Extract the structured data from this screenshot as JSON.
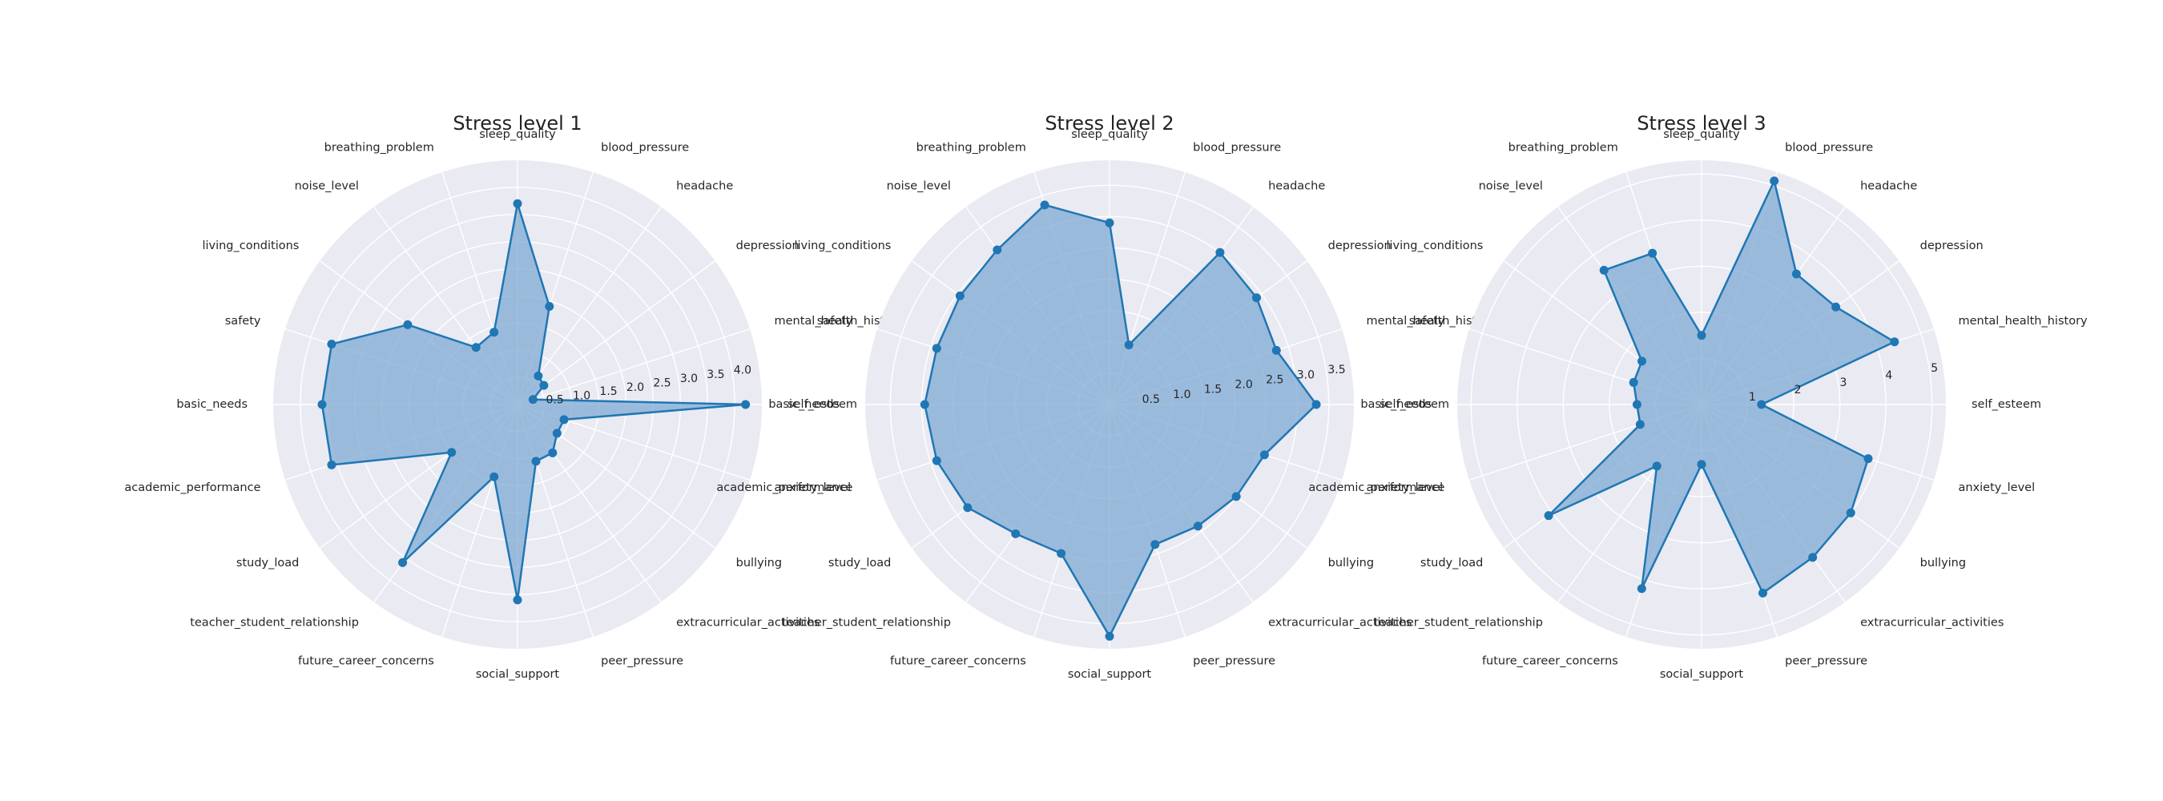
{
  "chart_data": [
    {
      "type": "radar",
      "title": "Stress level 1",
      "categories": [
        "self_esteem",
        "mental_health_history",
        "depression",
        "headache",
        "blood_pressure",
        "sleep_quality",
        "breathing_problem",
        "noise_level",
        "living_conditions",
        "safety",
        "basic_needs",
        "academic_performance",
        "study_load",
        "teacher_student_relationship",
        "future_career_concerns",
        "social_support",
        "peer_pressure",
        "extracurricular_activities",
        "bullying",
        "anxiety_level"
      ],
      "values": [
        4.2,
        0.3,
        0.6,
        0.65,
        1.9,
        3.7,
        1.4,
        1.3,
        2.5,
        3.6,
        3.6,
        3.6,
        1.5,
        3.6,
        1.4,
        3.6,
        1.1,
        1.1,
        0.9,
        0.9
      ],
      "ylim": [
        0,
        4.5
      ],
      "ticks": [
        0.5,
        1.0,
        1.5,
        2.0,
        2.5,
        3.0,
        3.5,
        4.0
      ],
      "tick_labels": [
        "0.5",
        "1.0",
        "1.5",
        "2.0",
        "2.5",
        "3.0",
        "3.5",
        "4.0"
      ],
      "grid": true
    },
    {
      "type": "radar",
      "title": "Stress level 2",
      "categories": [
        "self_esteem",
        "mental_health_history",
        "depression",
        "headache",
        "blood_pressure",
        "sleep_quality",
        "breathing_problem",
        "noise_level",
        "living_conditions",
        "safety",
        "basic_needs",
        "academic_performance",
        "study_load",
        "teacher_student_relationship",
        "future_career_concerns",
        "social_support",
        "peer_pressure",
        "extracurricular_activities",
        "bullying",
        "anxiety_level"
      ],
      "values": [
        3.3,
        2.8,
        2.9,
        3.0,
        1.0,
        2.9,
        3.35,
        3.05,
        2.95,
        2.9,
        2.95,
        2.9,
        2.8,
        2.55,
        2.5,
        3.7,
        2.35,
        2.4,
        2.5,
        2.6
      ],
      "ylim": [
        0,
        3.9
      ],
      "ticks": [
        0.5,
        1.0,
        1.5,
        2.0,
        2.5,
        3.0,
        3.5
      ],
      "tick_labels": [
        "0.5",
        "1.0",
        "1.5",
        "2.0",
        "2.5",
        "3.0",
        "3.5"
      ],
      "grid": true
    },
    {
      "type": "radar",
      "title": "Stress level 3",
      "categories": [
        "self_esteem",
        "mental_health_history",
        "depression",
        "headache",
        "blood_pressure",
        "sleep_quality",
        "breathing_problem",
        "noise_level",
        "living_conditions",
        "safety",
        "basic_needs",
        "academic_performance",
        "study_load",
        "teacher_student_relationship",
        "future_career_concerns",
        "social_support",
        "peer_pressure",
        "extracurricular_activities",
        "bullying",
        "anxiety_level"
      ],
      "values": [
        1.3,
        4.4,
        3.6,
        3.5,
        5.1,
        1.5,
        3.45,
        3.6,
        1.6,
        1.55,
        1.4,
        1.4,
        4.1,
        1.65,
        4.2,
        1.3,
        4.3,
        4.1,
        4.0,
        3.8
      ],
      "ylim": [
        0,
        5.3
      ],
      "ticks": [
        1,
        2,
        3,
        4,
        5
      ],
      "tick_labels": [
        "1",
        "2",
        "3",
        "4",
        "5"
      ],
      "grid": true
    }
  ],
  "colors": {
    "line": "#1f77b4",
    "fill": "#7fa9d4",
    "panel": "#eaeaf2",
    "grid": "#ffffff"
  }
}
